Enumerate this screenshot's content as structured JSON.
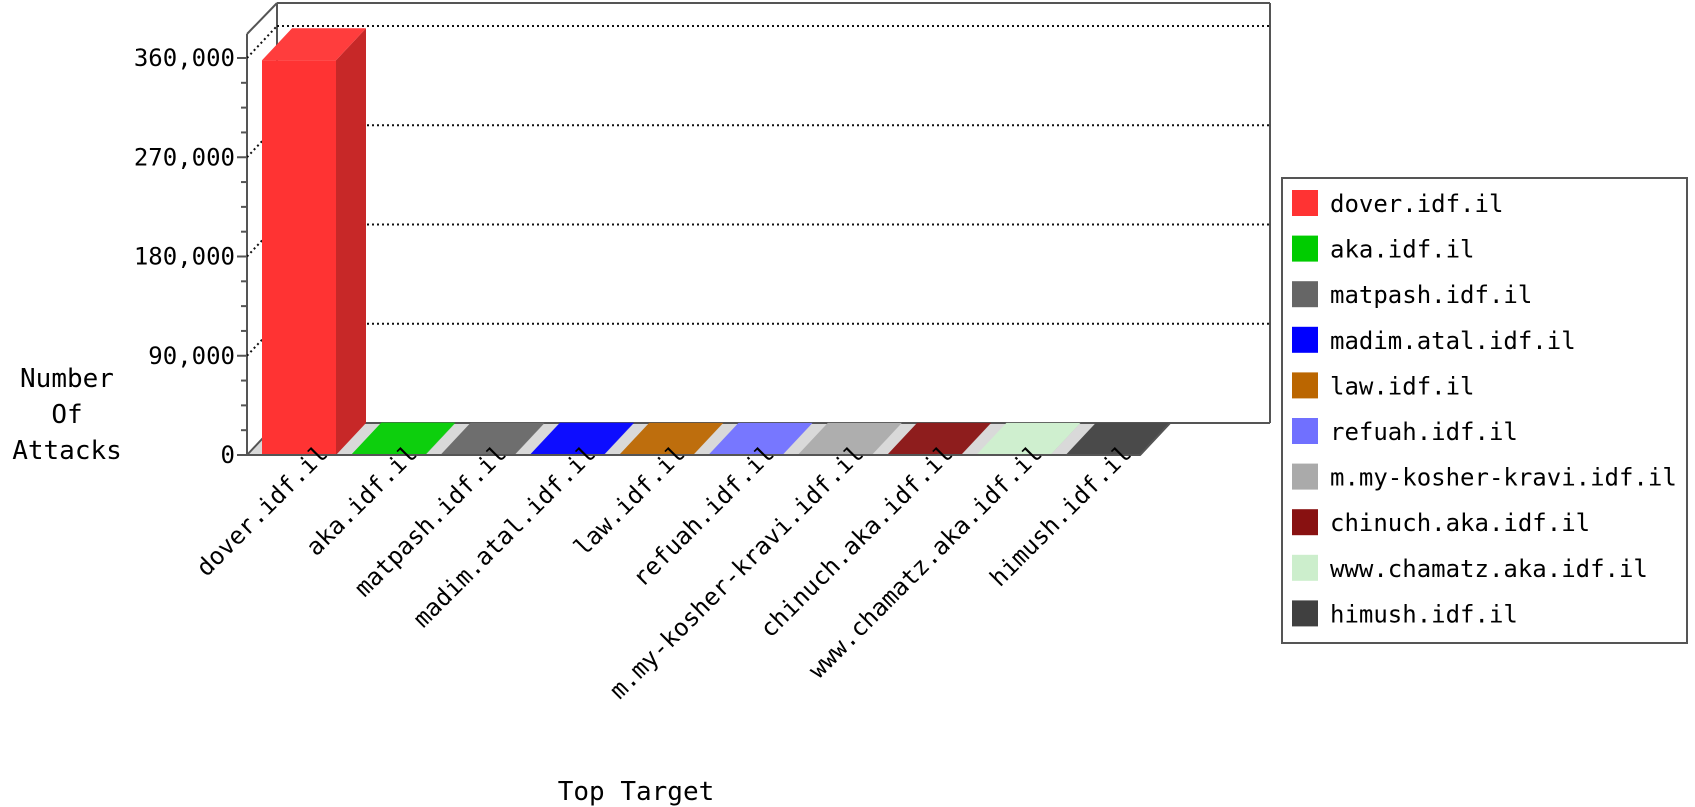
{
  "chart_data": {
    "type": "bar",
    "title": "",
    "xlabel": "Top Target",
    "ylabel": [
      "Number",
      "Of",
      "Attacks"
    ],
    "ylim": [
      0,
      360000
    ],
    "yticks": [
      0,
      90000,
      180000,
      270000,
      360000
    ],
    "ytick_labels": [
      "0",
      "90,000",
      "180,000",
      "270,000",
      "360,000"
    ],
    "grid": true,
    "legend_position": "right",
    "categories": [
      "dover.idf.il",
      "aka.idf.il",
      "matpash.idf.il",
      "madim.atal.idf.il",
      "law.idf.il",
      "refuah.idf.il",
      "m.my-kosher-kravi.idf.il",
      "chinuch.aka.idf.il",
      "www.chamatz.aka.idf.il",
      "himush.idf.il"
    ],
    "values": [
      358000,
      300,
      250,
      200,
      150,
      120,
      100,
      80,
      60,
      40
    ],
    "colors": [
      "#ff3333",
      "#00cc00",
      "#666666",
      "#0000ff",
      "#bb6600",
      "#7070ff",
      "#aaaaaa",
      "#881111",
      "#cceecc",
      "#404040"
    ]
  }
}
